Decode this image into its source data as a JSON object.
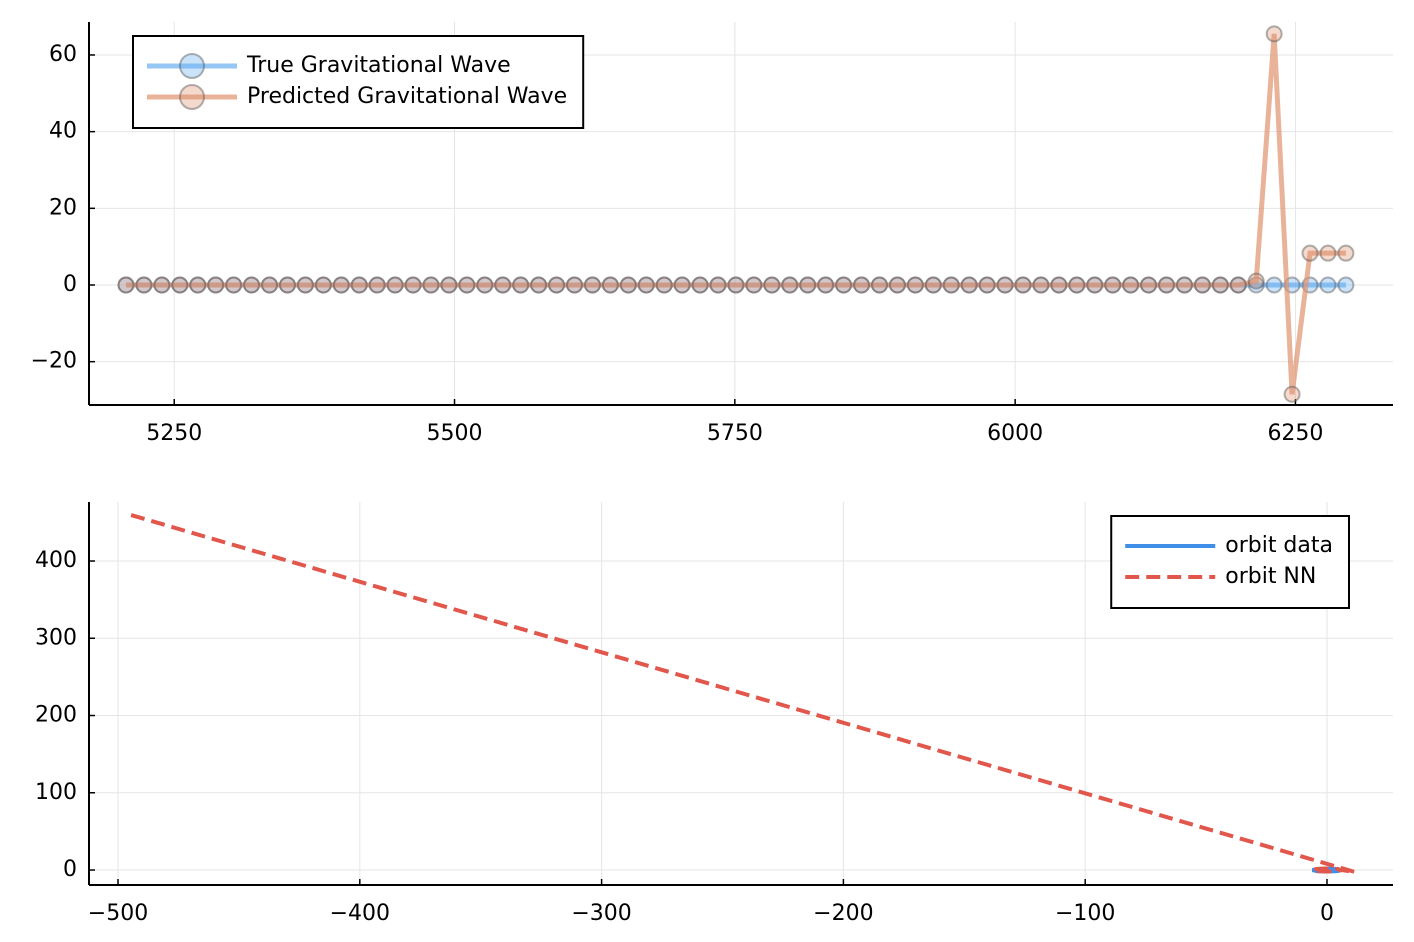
{
  "chart_data": [
    {
      "type": "line",
      "legend": "top left",
      "grid": true,
      "x": [
        5207,
        5223,
        5239,
        5255,
        5271,
        5287,
        5303,
        5319,
        5335,
        5351,
        5367,
        5383,
        5399,
        5415,
        5431,
        5447,
        5463,
        5479,
        5495,
        5511,
        5527,
        5543,
        5559,
        5575,
        5591,
        5607,
        5623,
        5639,
        5655,
        5671,
        5687,
        5703,
        5719,
        5735,
        5751,
        5767,
        5783,
        5799,
        5815,
        5831,
        5847,
        5863,
        5879,
        5895,
        5911,
        5927,
        5943,
        5959,
        5975,
        5991,
        6007,
        6023,
        6039,
        6055,
        6071,
        6087,
        6103,
        6119,
        6135,
        6151,
        6167,
        6183,
        6199,
        6215,
        6231,
        6247,
        6263,
        6279,
        6295
      ],
      "series": [
        {
          "name": "True Gravitational Wave",
          "color": "#6aaef0",
          "markers": true,
          "values": [
            0,
            0,
            0,
            0,
            0,
            0,
            0,
            0,
            0,
            0,
            0,
            0,
            0,
            0,
            0,
            0,
            0,
            0,
            0,
            0,
            0,
            0,
            0,
            0,
            0,
            0,
            0,
            0,
            0,
            0,
            0,
            0,
            0,
            0,
            0,
            0,
            0,
            0,
            0,
            0,
            0,
            0,
            0,
            0,
            0,
            0,
            0,
            0,
            0,
            0,
            0,
            0,
            0,
            0,
            0,
            0,
            0,
            0,
            0,
            0,
            0,
            0,
            0,
            0,
            0,
            0,
            0,
            0,
            0
          ]
        },
        {
          "name": "Predicted Gravitational Wave",
          "color": "#e0936f",
          "markers": true,
          "values": [
            0,
            0,
            0,
            0,
            0,
            0,
            0,
            0,
            0,
            0,
            0,
            0,
            0,
            0,
            0,
            0,
            0,
            0,
            0,
            0,
            0,
            0,
            0,
            0,
            0,
            0,
            0,
            0,
            0,
            0,
            0,
            0,
            0,
            0,
            0,
            0,
            0,
            0,
            0,
            0,
            0,
            0,
            0,
            0,
            0,
            0,
            0,
            0,
            0,
            0,
            0,
            0,
            0,
            0,
            0,
            0,
            0,
            0,
            0,
            0,
            0,
            0,
            0,
            1,
            65.5,
            -28.5,
            8.3,
            8.3,
            8.3
          ]
        }
      ],
      "xlim": [
        5174,
        6337
      ],
      "xticks": [
        5250,
        5500,
        5750,
        6000,
        6250
      ],
      "ylim": [
        -31.3,
        68.6
      ],
      "yticks": [
        {
          "value": -20,
          "label": "−20"
        },
        0,
        20,
        40,
        60
      ]
    },
    {
      "type": "line",
      "legend": "top right",
      "grid": true,
      "series": [
        {
          "name": "orbit data",
          "color": "#3f8ee8",
          "dash": false,
          "x": [
            6,
            4.2,
            0,
            -4.2,
            -6,
            -4.2,
            0,
            4.2,
            6
          ],
          "values": [
            0,
            1.4,
            2,
            1.4,
            0,
            -1.4,
            -2,
            -1.4,
            0
          ]
        },
        {
          "name": "orbit NN",
          "color": "#e2574c",
          "dash": true,
          "x": [
            -494.6,
            11.6,
            6,
            4.2,
            0,
            -4.2,
            -6,
            -4.2,
            0,
            4.2,
            6
          ],
          "values": [
            459.5,
            -2.6,
            0,
            1.4,
            2,
            1.4,
            0,
            -1.4,
            -2,
            -1.4,
            0
          ]
        }
      ],
      "xlim": [
        -512,
        27.3
      ],
      "xticks": [
        {
          "value": -500,
          "label": "−500"
        },
        {
          "value": -400,
          "label": "−400"
        },
        {
          "value": -300,
          "label": "−300"
        },
        {
          "value": -200,
          "label": "−200"
        },
        {
          "value": -100,
          "label": "−100"
        },
        0
      ],
      "ylim": [
        -19.4,
        476.4
      ],
      "yticks": [
        0,
        100,
        200,
        300,
        400
      ]
    }
  ]
}
